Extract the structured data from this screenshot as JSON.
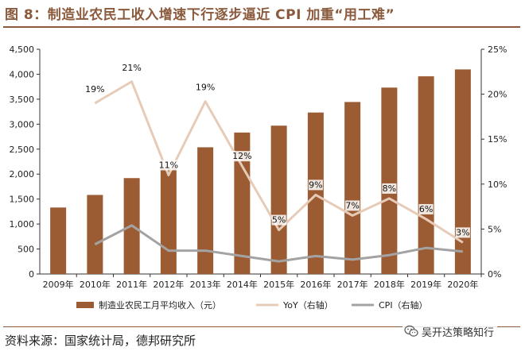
{
  "header": {
    "title": "图 8：制造业农民工收入增速下行逐步逼近 CPI 加重“用工难”"
  },
  "footer": {
    "source": "资料来源：国家统计局，德邦研究所"
  },
  "watermark": {
    "text": "吴开达策略知行",
    "icon": "wechat-icon"
  },
  "colors": {
    "bar": "#9C5C33",
    "yoy": "#E6CCB8",
    "cpi": "#A3A3A3",
    "title": "#8B5A3C"
  },
  "chart_data": {
    "type": "bar",
    "categories": [
      "2009年",
      "2010年",
      "2011年",
      "2012年",
      "2013年",
      "2014年",
      "2015年",
      "2016年",
      "2017年",
      "2018年",
      "2019年",
      "2020年"
    ],
    "left_axis": {
      "ylim": [
        0,
        4500
      ],
      "ticks": [
        0,
        500,
        1000,
        1500,
        2000,
        2500,
        3000,
        3500,
        4000,
        4500
      ],
      "tick_labels": [
        "0",
        "500",
        "1,000",
        "1,500",
        "2,000",
        "2,500",
        "3,000",
        "3,500",
        "4,000",
        "4,500"
      ]
    },
    "right_axis": {
      "ylim": [
        0,
        25
      ],
      "ticks": [
        0,
        5,
        10,
        15,
        20,
        25
      ],
      "tick_labels": [
        "0%",
        "5%",
        "10%",
        "15%",
        "20%",
        "25%"
      ]
    },
    "series": [
      {
        "name": "制造业农民工月平均收入（元）",
        "kind": "bar",
        "axis": "left",
        "values": [
          1331,
          1583,
          1920,
          2130,
          2537,
          2832,
          2970,
          3233,
          3444,
          3732,
          3958,
          4096
        ]
      },
      {
        "name": "YoY（右轴）",
        "kind": "line",
        "axis": "right",
        "values": [
          null,
          19,
          21.4,
          11,
          19.2,
          12,
          4.9,
          8.8,
          6.5,
          8.4,
          6.1,
          3.5
        ],
        "labels": [
          null,
          "19%",
          "21%",
          "11%",
          "19%",
          "12%",
          "5%",
          "9%",
          "7%",
          "8%",
          "6%",
          "3%"
        ]
      },
      {
        "name": "CPI（右轴）",
        "kind": "line",
        "axis": "right",
        "values": [
          null,
          3.3,
          5.4,
          2.6,
          2.6,
          2.0,
          1.4,
          2.0,
          1.6,
          2.1,
          2.9,
          2.5
        ]
      }
    ],
    "legend": "bottom",
    "grid": false
  }
}
